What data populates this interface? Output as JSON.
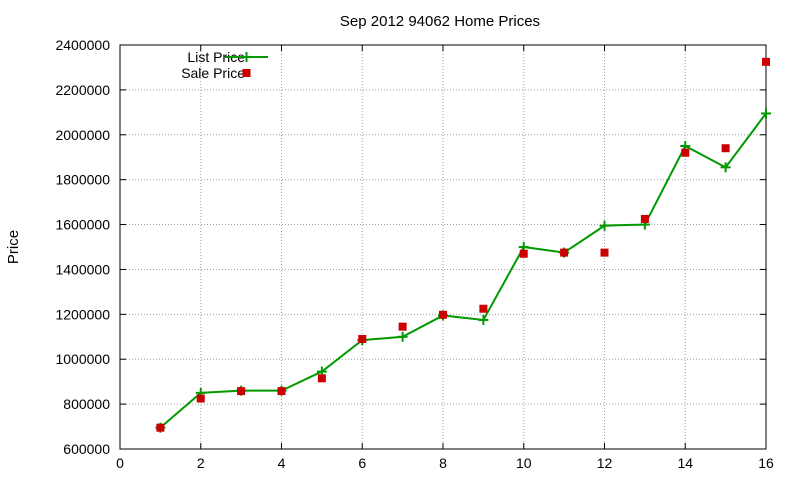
{
  "chart_data": {
    "type": "line",
    "title": "Sep 2012 94062 Home Prices",
    "xlabel": "",
    "ylabel": "Price",
    "xlim": [
      0,
      16
    ],
    "ylim": [
      600000,
      2400000
    ],
    "x_ticks": [
      0,
      2,
      4,
      6,
      8,
      10,
      12,
      14,
      16
    ],
    "y_ticks": [
      600000,
      800000,
      1000000,
      1200000,
      1400000,
      1600000,
      1800000,
      2000000,
      2200000,
      2400000
    ],
    "grid": true,
    "legend_position": "top-left",
    "series": [
      {
        "name": "List Price",
        "style": "line-plus",
        "color": "#009900",
        "x": [
          1,
          2,
          3,
          4,
          5,
          6,
          7,
          8,
          9,
          10,
          11,
          12,
          13,
          14,
          15,
          16
        ],
        "values": [
          695000,
          850000,
          860000,
          860000,
          945000,
          1085000,
          1100000,
          1195000,
          1175000,
          1500000,
          1475000,
          1595000,
          1600000,
          1950000,
          1855000,
          2095000
        ]
      },
      {
        "name": "Sale Price",
        "style": "square",
        "color": "#cc0000",
        "x": [
          1,
          2,
          3,
          4,
          5,
          6,
          7,
          8,
          9,
          10,
          11,
          12,
          13,
          14,
          15,
          16
        ],
        "values": [
          695000,
          825000,
          858000,
          858000,
          915000,
          1090000,
          1145000,
          1198000,
          1225000,
          1470000,
          1475000,
          1475000,
          1625000,
          1920000,
          1940000,
          2325000
        ]
      }
    ]
  }
}
